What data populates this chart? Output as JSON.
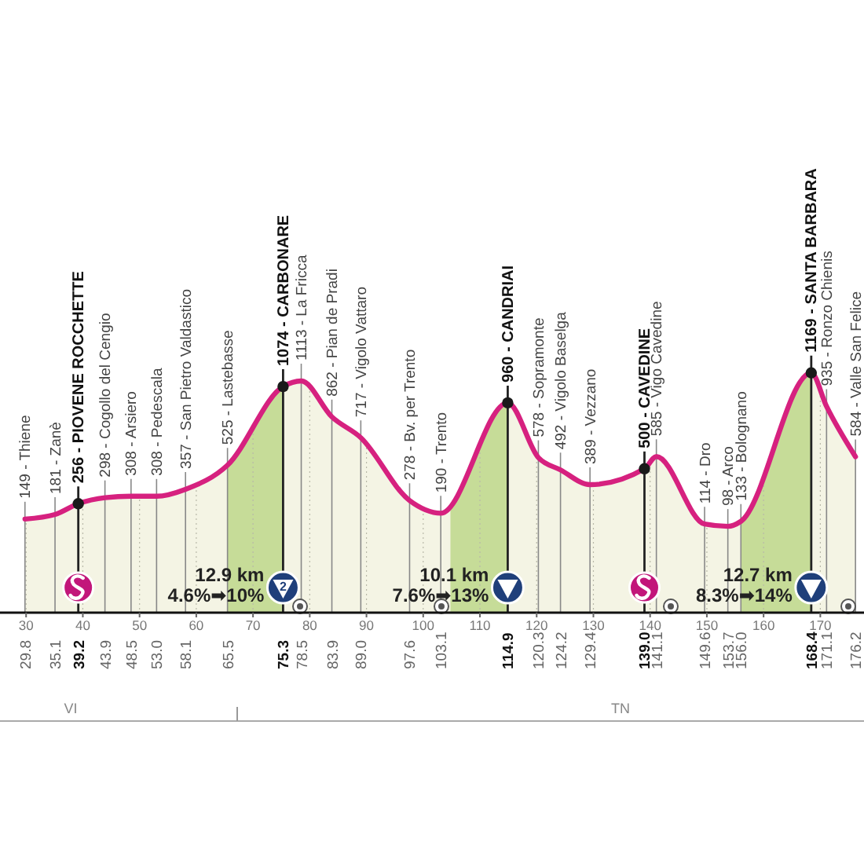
{
  "chart_data": {
    "type": "area",
    "xlim": [
      25.4,
      177.7
    ],
    "xticks": [
      30,
      40,
      50,
      60,
      70,
      80,
      90,
      100,
      110,
      120,
      130,
      140,
      150,
      160,
      170
    ],
    "x2lim": [
      25.4,
      177.7
    ],
    "x2ticks": [
      29.8,
      35.1,
      39.2,
      43.9,
      48.5,
      {
        "value": 53,
        "label": "53.0"
      },
      58.1,
      65.5,
      75.3,
      78.5,
      83.9,
      {
        "value": 89,
        "label": "89.0"
      },
      97.6,
      103.1,
      114.9,
      120.3,
      124.2,
      129.4,
      {
        "value": 139,
        "label": "139.0"
      },
      141.1,
      149.6,
      153.7,
      {
        "value": 156,
        "label": "156.0"
      },
      168.4,
      171.1,
      176.2
    ],
    "x": [
      29.8,
      35.1,
      39.2,
      43.9,
      48.5,
      53.0,
      58.1,
      65.5,
      75.3,
      78.5,
      83.9,
      89.0,
      97.6,
      103.1,
      114.9,
      120.3,
      124.2,
      129.4,
      139.0,
      141.1,
      149.6,
      153.7,
      156.0,
      168.4,
      171.1,
      176.2
    ],
    "series": [
      {
        "color": "#d6217f",
        "values": [
          149,
          181,
          256,
          298,
          308,
          308,
          357,
          525,
          1074,
          1113,
          862,
          717,
          278,
          190,
          960,
          578,
          492,
          389,
          500,
          585,
          114,
          98,
          133,
          1169,
          935,
          584
        ],
        "value_labels": [
          "149 - Thiene",
          "181 - Zanè",
          "256 - PIOVENE ROCCHETTE",
          "298 - Cogollo del Cengio",
          "308 - Arsiero",
          "308 - Pedescala",
          "357 - San Pietro Valdastico",
          "525 - Lastebasse",
          "1074 - CARBONARE",
          "1113 - La Fricca",
          "862 - Pian de Pradi",
          "717 - Vigolo Vattaro",
          "278 - Bv. per Trento",
          "190 - Trento",
          "960 - CANDRIAI",
          "578 - Sopramonte",
          "492 - Vigolo Baselga",
          "389 - Vezzano",
          "500 - CAVEDINE",
          "585 - Vigo Cavedine",
          "114 - Dro",
          "98 - Arco",
          "133 - Bolognano",
          "1169 - SANTA BARBARA",
          "935 - Ronzo Chienis",
          "584 - Valle San Felice"
        ]
      },
      {
        "type": "scatter",
        "marker": "circle",
        "color": "#1a1a1a",
        "x": [
          39.2,
          75.3,
          114.9,
          139.0,
          168.4
        ],
        "values": [
          256,
          1074,
          960,
          500,
          1169
        ]
      }
    ],
    "bands": [
      {
        "axis": "x",
        "from": 65.5,
        "to": 75.3,
        "label": "12.9 km\n4.6%➡10%",
        "color": "#c6dc98"
      },
      {
        "axis": "x",
        "from": 104.8,
        "to": 114.9,
        "label": "10.1 km\n7.6%➡13%",
        "color": "#c6dc98"
      },
      {
        "axis": "x",
        "from": 156.0,
        "to": 168.4,
        "label": "12.7 km\n8.3%➡14%",
        "color": "#c6dc98"
      }
    ],
    "annotations": [
      {
        "text": "2",
        "x": 75.3
      },
      "VI",
      "TN"
    ],
    "grid": "x"
  }
}
